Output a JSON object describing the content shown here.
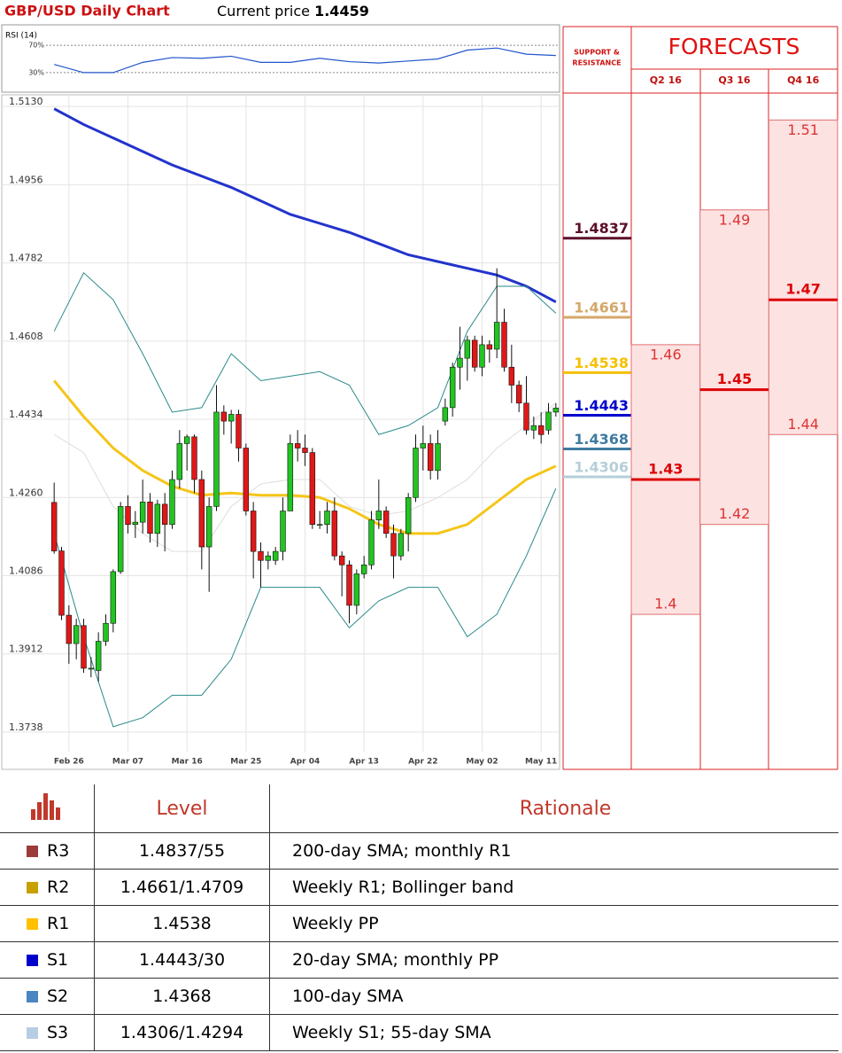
{
  "chart_data": {
    "type": "candlestick",
    "title": "GBP/USD Daily Chart",
    "current_price_label": "Current price",
    "current_price": 1.4459,
    "categories": [
      null,
      null,
      "Feb 26",
      null,
      null,
      null,
      null,
      null,
      null,
      null,
      "Mar 07",
      null,
      null,
      null,
      null,
      null,
      null,
      null,
      "Mar 16",
      null,
      null,
      null,
      null,
      null,
      null,
      null,
      "Mar 25",
      null,
      null,
      null,
      null,
      null,
      null,
      null,
      "Apr 04",
      null,
      null,
      null,
      null,
      null,
      null,
      null,
      "Apr 13",
      null,
      null,
      null,
      null,
      null,
      null,
      null,
      "Apr 22",
      null,
      null,
      null,
      null,
      null,
      null,
      null,
      "May 02",
      null,
      null,
      null,
      null,
      null,
      null,
      null,
      "May 11",
      null,
      null
    ],
    "open": [
      1.4249,
      1.4141,
      1.3998,
      1.3935,
      1.3975,
      1.388,
      1.3875,
      1.394,
      1.398,
      1.4095,
      1.424,
      1.42,
      1.4205,
      1.425,
      1.418,
      1.4245,
      1.42,
      1.43,
      1.438,
      1.4395,
      1.43,
      1.415,
      1.424,
      1.445,
      1.443,
      1.4445,
      1.437,
      1.423,
      1.414,
      1.412,
      1.412,
      1.414,
      1.423,
      1.438,
      1.437,
      1.436,
      1.42,
      1.42,
      1.423,
      1.413,
      1.411,
      1.402,
      1.409,
      1.411,
      1.421,
      1.423,
      1.418,
      1.413,
      1.418,
      1.426,
      1.437,
      1.438,
      1.432,
      1.443,
      1.446,
      1.455,
      1.457,
      1.461,
      1.455,
      1.46,
      1.459,
      1.465,
      1.455,
      1.451,
      1.447,
      1.441,
      1.442,
      1.441,
      1.445
    ],
    "close": [
      1.4141,
      1.3998,
      1.3935,
      1.3975,
      1.388,
      1.388,
      1.394,
      1.398,
      1.4095,
      1.424,
      1.42,
      1.4205,
      1.425,
      1.418,
      1.4245,
      1.42,
      1.43,
      1.438,
      1.4395,
      1.43,
      1.415,
      1.424,
      1.445,
      1.443,
      1.4445,
      1.437,
      1.423,
      1.414,
      1.412,
      1.413,
      1.414,
      1.423,
      1.438,
      1.437,
      1.436,
      1.42,
      1.42,
      1.423,
      1.413,
      1.411,
      1.402,
      1.409,
      1.411,
      1.421,
      1.423,
      1.418,
      1.413,
      1.418,
      1.426,
      1.437,
      1.438,
      1.432,
      1.438,
      1.446,
      1.455,
      1.457,
      1.461,
      1.455,
      1.46,
      1.459,
      1.465,
      1.455,
      1.451,
      1.447,
      1.441,
      1.442,
      1.44,
      1.445,
      1.4459
    ],
    "high": [
      1.4293,
      1.415,
      1.402,
      1.399,
      1.399,
      1.3905,
      1.396,
      1.4,
      1.41,
      1.425,
      1.4265,
      1.423,
      1.43,
      1.427,
      1.4255,
      1.427,
      1.432,
      1.441,
      1.44,
      1.44,
      1.432,
      1.426,
      1.451,
      1.4465,
      1.4455,
      1.4455,
      1.438,
      1.425,
      1.416,
      1.414,
      1.415,
      1.426,
      1.44,
      1.441,
      1.44,
      1.437,
      1.423,
      1.425,
      1.426,
      1.414,
      1.412,
      1.41,
      1.413,
      1.423,
      1.43,
      1.424,
      1.42,
      1.419,
      1.427,
      1.44,
      1.442,
      1.44,
      1.441,
      1.448,
      1.456,
      1.464,
      1.462,
      1.462,
      1.462,
      1.461,
      1.477,
      1.468,
      1.46,
      1.452,
      1.453,
      1.444,
      1.445,
      1.447,
      1.447
    ],
    "low": [
      1.4135,
      1.3987,
      1.389,
      1.39,
      1.387,
      1.386,
      1.385,
      1.393,
      1.396,
      1.409,
      1.418,
      1.417,
      1.418,
      1.416,
      1.415,
      1.414,
      1.419,
      1.428,
      1.432,
      1.427,
      1.41,
      1.405,
      1.423,
      1.44,
      1.438,
      1.434,
      1.422,
      1.408,
      1.406,
      1.41,
      1.411,
      1.412,
      1.423,
      1.434,
      1.433,
      1.419,
      1.419,
      1.418,
      1.412,
      1.404,
      1.398,
      1.4,
      1.408,
      1.41,
      1.419,
      1.417,
      1.408,
      1.412,
      1.414,
      1.425,
      1.432,
      1.43,
      1.43,
      1.442,
      1.444,
      1.45,
      1.452,
      1.454,
      1.453,
      1.456,
      1.457,
      1.454,
      1.447,
      1.445,
      1.44,
      1.439,
      1.438,
      1.44,
      1.444
    ],
    "up_color": "#22c422",
    "down_color": "#e01818",
    "ylim": [
      1.3655,
      1.5156
    ],
    "yticks": [
      {
        "value": 1.513,
        "label": "1.5130"
      },
      1.4956,
      1.4782,
      1.4608,
      1.4434,
      {
        "value": 1.426,
        "label": "1.4260"
      },
      1.4086,
      1.3912,
      1.3738
    ],
    "grid": true,
    "lines": [
      {
        "color": "#2233cc",
        "x": [
          0,
          4,
          8,
          12,
          16,
          20,
          24,
          28,
          32,
          36,
          40,
          44,
          48,
          52,
          56,
          60,
          64,
          68
        ],
        "values": [
          1.5125,
          1.509,
          1.506,
          1.503,
          1.5,
          1.4975,
          1.495,
          1.492,
          1.489,
          1.487,
          1.485,
          1.4825,
          1.48,
          1.4785,
          1.477,
          1.4755,
          1.473,
          1.4695
        ]
      },
      {
        "color": "#f5c518",
        "x": [
          0,
          4,
          8,
          12,
          16,
          20,
          24,
          28,
          32,
          36,
          40,
          44,
          48,
          52,
          56,
          60,
          64,
          68
        ],
        "values": [
          1.452,
          1.444,
          1.437,
          1.432,
          1.4285,
          1.4265,
          1.427,
          1.4265,
          1.4265,
          1.426,
          1.4235,
          1.42,
          1.418,
          1.418,
          1.42,
          1.425,
          1.43,
          1.433
        ]
      },
      {
        "color": "#2a8a8a",
        "x": [
          0,
          4,
          8,
          12,
          16,
          20,
          24,
          28,
          32,
          36,
          40,
          44,
          48,
          52,
          56,
          60,
          64,
          68
        ],
        "values": [
          1.463,
          1.476,
          1.47,
          1.458,
          1.445,
          1.446,
          1.458,
          1.452,
          1.453,
          1.454,
          1.451,
          1.44,
          1.442,
          1.446,
          1.463,
          1.473,
          1.473,
          1.467
        ]
      },
      {
        "color": "#2a8a8a",
        "x": [
          0,
          4,
          8,
          12,
          16,
          20,
          24,
          28,
          32,
          36,
          40,
          44,
          48,
          52,
          56,
          60,
          64,
          68
        ],
        "values": [
          1.418,
          1.395,
          1.375,
          1.377,
          1.382,
          1.382,
          1.39,
          1.406,
          1.406,
          1.406,
          1.397,
          1.403,
          1.406,
          1.406,
          1.395,
          1.4,
          1.413,
          1.428
        ]
      },
      {
        "color": "#dddddd",
        "x": [
          0,
          4,
          8,
          12,
          16,
          20,
          24,
          28,
          32,
          36,
          40,
          44,
          48,
          52,
          56,
          60,
          64,
          68
        ],
        "values": [
          1.44,
          1.436,
          1.424,
          1.418,
          1.414,
          1.414,
          1.424,
          1.429,
          1.43,
          1.43,
          1.424,
          1.422,
          1.423,
          1.426,
          1.43,
          1.437,
          1.442,
          1.447
        ]
      }
    ],
    "rsi": {
      "title": "RSI (14)",
      "color": "#2255cc",
      "ylim": [
        0,
        100
      ],
      "yticks": [
        {
          "value": 70,
          "label": "70%"
        },
        {
          "value": 30,
          "label": "30%"
        }
      ],
      "x": [
        0,
        4,
        8,
        12,
        16,
        20,
        24,
        28,
        32,
        36,
        40,
        44,
        48,
        52,
        56,
        60,
        64,
        68
      ],
      "values": [
        42,
        30,
        30,
        45,
        52,
        51,
        54,
        45,
        45,
        51,
        46,
        44,
        47,
        50,
        63,
        66,
        57,
        55
      ]
    },
    "support_resistance": {
      "title_lines": [
        "SUPPORT &",
        "RESISTANCE"
      ],
      "levels": [
        {
          "value": 1.4837,
          "color": "#5c0f2a"
        },
        {
          "value": 1.4661,
          "color": "#d4a76a"
        },
        {
          "value": 1.4538,
          "color": "#f5c000"
        },
        {
          "value": 1.4443,
          "color": "#0000cc"
        },
        {
          "value": 1.4368,
          "color": "#3f7aa0"
        },
        {
          "value": 1.4306,
          "color": "#b5cfd8"
        }
      ]
    },
    "forecasts": {
      "title": "FORECASTS",
      "quarters": [
        {
          "label": "Q2 16",
          "value": 1.43,
          "low": 1.4,
          "high": 1.46
        },
        {
          "label": "Q3 16",
          "value": 1.45,
          "low": 1.42,
          "high": 1.49
        },
        {
          "label": "Q4 16",
          "value": 1.47,
          "low": 1.44,
          "high": 1.51
        }
      ]
    }
  },
  "table": {
    "header": [
      "Level",
      "Rationale"
    ],
    "rows": [
      {
        "name": "R3",
        "color": "#9b3b3b",
        "level": "1.4837/55",
        "rationale": "200-day SMA; monthly R1"
      },
      {
        "name": "R2",
        "color": "#c8a000",
        "level": "1.4661/1.4709",
        "rationale": "Weekly R1; Bollinger band"
      },
      {
        "name": "R1",
        "color": "#ffc000",
        "level": "1.4538",
        "rationale": "Weekly PP"
      },
      {
        "name": "S1",
        "color": "#0000cc",
        "level": "1.4443/30",
        "rationale": "20-day SMA; monthly PP"
      },
      {
        "name": "S2",
        "color": "#4a86c0",
        "level": "1.4368",
        "rationale": "100-day SMA"
      },
      {
        "name": "S3",
        "color": "#b8cce4",
        "level": "1.4306/1.4294",
        "rationale": "Weekly S1; 55-day SMA"
      }
    ]
  }
}
